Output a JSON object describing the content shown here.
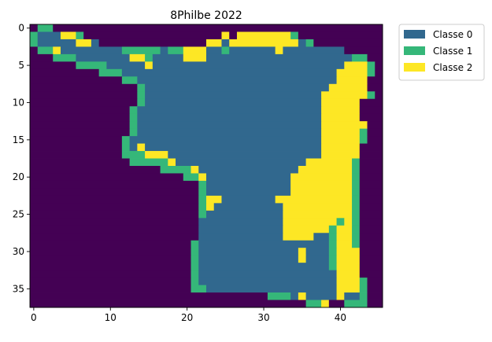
{
  "chart_data": {
    "type": "heatmap",
    "title": "8Philbe 2022",
    "xlabel": "",
    "ylabel": "",
    "n_rows": 38,
    "n_cols": 46,
    "xticks": [
      0,
      10,
      20,
      30,
      40
    ],
    "yticks": [
      0,
      5,
      10,
      15,
      20,
      25,
      30,
      35
    ],
    "classes": [
      {
        "id": -1,
        "color": "#440154"
      },
      {
        "id": 0,
        "name": "Classe 0",
        "color": "#31688e"
      },
      {
        "id": 1,
        "name": "Classe 1",
        "color": "#35b779"
      },
      {
        "id": 2,
        "name": "Classe 2",
        "color": "#fde725"
      }
    ],
    "legend_position": "outside-top-right",
    "rows": [
      [
        [
          0,
          0,
          -1
        ],
        [
          1,
          2,
          1
        ],
        [
          3,
          45,
          -1
        ]
      ],
      [
        [
          0,
          0,
          1
        ],
        [
          1,
          3,
          0
        ],
        [
          4,
          5,
          2
        ],
        [
          6,
          6,
          1
        ],
        [
          7,
          24,
          -1
        ],
        [
          25,
          25,
          2
        ],
        [
          26,
          26,
          -1
        ],
        [
          27,
          33,
          2
        ],
        [
          34,
          34,
          1
        ],
        [
          35,
          45,
          -1
        ]
      ],
      [
        [
          0,
          0,
          1
        ],
        [
          1,
          5,
          0
        ],
        [
          6,
          7,
          2
        ],
        [
          8,
          8,
          0
        ],
        [
          9,
          22,
          -1
        ],
        [
          23,
          24,
          2
        ],
        [
          25,
          25,
          0
        ],
        [
          26,
          34,
          2
        ],
        [
          35,
          35,
          0
        ],
        [
          36,
          36,
          1
        ],
        [
          37,
          45,
          -1
        ]
      ],
      [
        [
          0,
          0,
          -1
        ],
        [
          1,
          2,
          1
        ],
        [
          3,
          3,
          2
        ],
        [
          4,
          11,
          0
        ],
        [
          12,
          16,
          1
        ],
        [
          17,
          17,
          0
        ],
        [
          18,
          19,
          1
        ],
        [
          20,
          22,
          2
        ],
        [
          23,
          24,
          0
        ],
        [
          25,
          25,
          1
        ],
        [
          26,
          31,
          0
        ],
        [
          32,
          32,
          2
        ],
        [
          33,
          40,
          0
        ],
        [
          41,
          45,
          -1
        ]
      ],
      [
        [
          0,
          0,
          -1
        ],
        [
          1,
          2,
          -1
        ],
        [
          3,
          5,
          1
        ],
        [
          6,
          12,
          0
        ],
        [
          13,
          14,
          2
        ],
        [
          15,
          15,
          1
        ],
        [
          16,
          19,
          0
        ],
        [
          20,
          22,
          2
        ],
        [
          23,
          41,
          0
        ],
        [
          42,
          43,
          1
        ],
        [
          44,
          45,
          -1
        ]
      ],
      [
        [
          0,
          5,
          -1
        ],
        [
          6,
          9,
          1
        ],
        [
          10,
          14,
          0
        ],
        [
          15,
          15,
          2
        ],
        [
          16,
          40,
          0
        ],
        [
          41,
          43,
          2
        ],
        [
          44,
          44,
          1
        ],
        [
          45,
          45,
          -1
        ]
      ],
      [
        [
          0,
          8,
          -1
        ],
        [
          9,
          11,
          1
        ],
        [
          12,
          39,
          0
        ],
        [
          40,
          43,
          2
        ],
        [
          44,
          44,
          1
        ],
        [
          45,
          45,
          -1
        ]
      ],
      [
        [
          0,
          11,
          -1
        ],
        [
          12,
          13,
          1
        ],
        [
          14,
          39,
          0
        ],
        [
          40,
          43,
          2
        ],
        [
          44,
          45,
          -1
        ]
      ],
      [
        [
          0,
          13,
          -1
        ],
        [
          14,
          14,
          1
        ],
        [
          15,
          38,
          0
        ],
        [
          39,
          43,
          2
        ],
        [
          44,
          45,
          -1
        ]
      ],
      [
        [
          0,
          13,
          -1
        ],
        [
          14,
          14,
          1
        ],
        [
          15,
          37,
          0
        ],
        [
          38,
          43,
          2
        ],
        [
          44,
          44,
          1
        ],
        [
          45,
          45,
          -1
        ]
      ],
      [
        [
          0,
          13,
          -1
        ],
        [
          14,
          14,
          1
        ],
        [
          15,
          37,
          0
        ],
        [
          38,
          42,
          2
        ],
        [
          43,
          45,
          -1
        ]
      ],
      [
        [
          0,
          12,
          -1
        ],
        [
          13,
          13,
          1
        ],
        [
          14,
          37,
          0
        ],
        [
          38,
          42,
          2
        ],
        [
          43,
          45,
          -1
        ]
      ],
      [
        [
          0,
          12,
          -1
        ],
        [
          13,
          13,
          1
        ],
        [
          14,
          37,
          0
        ],
        [
          38,
          42,
          2
        ],
        [
          43,
          45,
          -1
        ]
      ],
      [
        [
          0,
          12,
          -1
        ],
        [
          13,
          13,
          1
        ],
        [
          14,
          37,
          0
        ],
        [
          38,
          43,
          2
        ],
        [
          44,
          45,
          -1
        ]
      ],
      [
        [
          0,
          12,
          -1
        ],
        [
          13,
          13,
          1
        ],
        [
          14,
          37,
          0
        ],
        [
          38,
          42,
          2
        ],
        [
          43,
          43,
          1
        ],
        [
          44,
          45,
          -1
        ]
      ],
      [
        [
          0,
          11,
          -1
        ],
        [
          12,
          12,
          1
        ],
        [
          13,
          37,
          0
        ],
        [
          38,
          42,
          2
        ],
        [
          43,
          43,
          1
        ],
        [
          44,
          45,
          -1
        ]
      ],
      [
        [
          0,
          11,
          -1
        ],
        [
          12,
          12,
          1
        ],
        [
          13,
          13,
          0
        ],
        [
          14,
          14,
          2
        ],
        [
          15,
          37,
          0
        ],
        [
          38,
          42,
          2
        ],
        [
          43,
          45,
          -1
        ]
      ],
      [
        [
          0,
          11,
          -1
        ],
        [
          12,
          14,
          1
        ],
        [
          15,
          17,
          2
        ],
        [
          18,
          37,
          0
        ],
        [
          38,
          42,
          2
        ],
        [
          43,
          45,
          -1
        ]
      ],
      [
        [
          0,
          12,
          -1
        ],
        [
          13,
          17,
          1
        ],
        [
          18,
          18,
          2
        ],
        [
          19,
          35,
          0
        ],
        [
          36,
          41,
          2
        ],
        [
          42,
          42,
          1
        ],
        [
          43,
          45,
          -1
        ]
      ],
      [
        [
          0,
          16,
          -1
        ],
        [
          17,
          20,
          1
        ],
        [
          21,
          21,
          2
        ],
        [
          22,
          34,
          0
        ],
        [
          35,
          41,
          2
        ],
        [
          42,
          42,
          1
        ],
        [
          43,
          45,
          -1
        ]
      ],
      [
        [
          0,
          19,
          -1
        ],
        [
          20,
          21,
          1
        ],
        [
          22,
          22,
          2
        ],
        [
          23,
          33,
          0
        ],
        [
          34,
          41,
          2
        ],
        [
          42,
          42,
          1
        ],
        [
          43,
          45,
          -1
        ]
      ],
      [
        [
          0,
          21,
          -1
        ],
        [
          22,
          22,
          1
        ],
        [
          23,
          33,
          0
        ],
        [
          34,
          41,
          2
        ],
        [
          42,
          42,
          1
        ],
        [
          43,
          45,
          -1
        ]
      ],
      [
        [
          0,
          21,
          -1
        ],
        [
          22,
          22,
          1
        ],
        [
          23,
          33,
          0
        ],
        [
          34,
          41,
          2
        ],
        [
          42,
          42,
          1
        ],
        [
          43,
          45,
          -1
        ]
      ],
      [
        [
          0,
          21,
          -1
        ],
        [
          22,
          22,
          1
        ],
        [
          23,
          24,
          2
        ],
        [
          25,
          31,
          0
        ],
        [
          32,
          41,
          2
        ],
        [
          42,
          42,
          1
        ],
        [
          43,
          45,
          -1
        ]
      ],
      [
        [
          0,
          21,
          -1
        ],
        [
          22,
          22,
          1
        ],
        [
          23,
          23,
          2
        ],
        [
          24,
          32,
          0
        ],
        [
          33,
          41,
          2
        ],
        [
          42,
          42,
          1
        ],
        [
          43,
          45,
          -1
        ]
      ],
      [
        [
          0,
          21,
          -1
        ],
        [
          22,
          22,
          1
        ],
        [
          23,
          32,
          0
        ],
        [
          33,
          41,
          2
        ],
        [
          42,
          42,
          1
        ],
        [
          43,
          45,
          -1
        ]
      ],
      [
        [
          0,
          21,
          -1
        ],
        [
          22,
          32,
          0
        ],
        [
          33,
          39,
          2
        ],
        [
          40,
          40,
          1
        ],
        [
          41,
          41,
          2
        ],
        [
          42,
          42,
          1
        ],
        [
          43,
          45,
          -1
        ]
      ],
      [
        [
          0,
          21,
          -1
        ],
        [
          22,
          32,
          0
        ],
        [
          33,
          38,
          2
        ],
        [
          39,
          39,
          1
        ],
        [
          40,
          41,
          2
        ],
        [
          42,
          42,
          1
        ],
        [
          43,
          45,
          -1
        ]
      ],
      [
        [
          0,
          21,
          -1
        ],
        [
          22,
          32,
          0
        ],
        [
          33,
          36,
          2
        ],
        [
          37,
          38,
          0
        ],
        [
          39,
          39,
          1
        ],
        [
          40,
          41,
          2
        ],
        [
          42,
          42,
          1
        ],
        [
          43,
          45,
          -1
        ]
      ],
      [
        [
          0,
          20,
          -1
        ],
        [
          21,
          21,
          1
        ],
        [
          22,
          38,
          0
        ],
        [
          39,
          39,
          1
        ],
        [
          40,
          41,
          2
        ],
        [
          42,
          42,
          1
        ],
        [
          43,
          45,
          -1
        ]
      ],
      [
        [
          0,
          20,
          -1
        ],
        [
          21,
          21,
          1
        ],
        [
          22,
          34,
          0
        ],
        [
          35,
          35,
          2
        ],
        [
          36,
          38,
          0
        ],
        [
          39,
          39,
          1
        ],
        [
          40,
          42,
          2
        ],
        [
          43,
          45,
          -1
        ]
      ],
      [
        [
          0,
          20,
          -1
        ],
        [
          21,
          21,
          1
        ],
        [
          22,
          34,
          0
        ],
        [
          35,
          35,
          2
        ],
        [
          36,
          38,
          0
        ],
        [
          39,
          39,
          1
        ],
        [
          40,
          42,
          2
        ],
        [
          43,
          45,
          -1
        ]
      ],
      [
        [
          0,
          20,
          -1
        ],
        [
          21,
          21,
          1
        ],
        [
          22,
          38,
          0
        ],
        [
          39,
          39,
          1
        ],
        [
          40,
          42,
          2
        ],
        [
          43,
          45,
          -1
        ]
      ],
      [
        [
          0,
          20,
          -1
        ],
        [
          21,
          21,
          1
        ],
        [
          22,
          39,
          0
        ],
        [
          40,
          42,
          2
        ],
        [
          43,
          45,
          -1
        ]
      ],
      [
        [
          0,
          20,
          -1
        ],
        [
          21,
          21,
          1
        ],
        [
          22,
          39,
          0
        ],
        [
          40,
          42,
          2
        ],
        [
          43,
          43,
          1
        ],
        [
          44,
          45,
          -1
        ]
      ],
      [
        [
          0,
          20,
          -1
        ],
        [
          21,
          22,
          1
        ],
        [
          23,
          39,
          0
        ],
        [
          40,
          42,
          2
        ],
        [
          43,
          43,
          1
        ],
        [
          44,
          45,
          -1
        ]
      ],
      [
        [
          0,
          30,
          -1
        ],
        [
          31,
          33,
          1
        ],
        [
          34,
          34,
          0
        ],
        [
          35,
          35,
          2
        ],
        [
          36,
          39,
          0
        ],
        [
          40,
          40,
          2
        ],
        [
          41,
          42,
          0
        ],
        [
          43,
          43,
          1
        ],
        [
          44,
          45,
          -1
        ]
      ],
      [
        [
          0,
          35,
          -1
        ],
        [
          36,
          37,
          1
        ],
        [
          38,
          38,
          2
        ],
        [
          39,
          40,
          -1
        ],
        [
          41,
          42,
          1
        ],
        [
          43,
          43,
          1
        ],
        [
          44,
          45,
          -1
        ]
      ]
    ]
  }
}
